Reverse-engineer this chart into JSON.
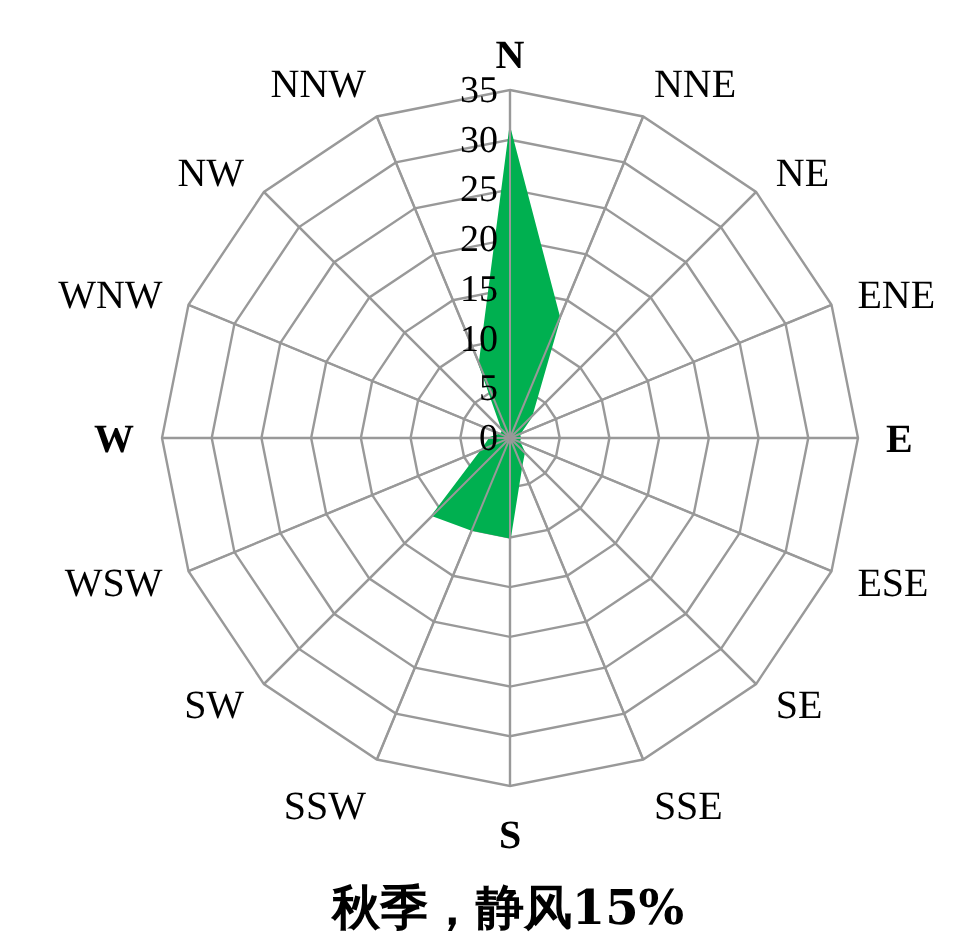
{
  "chart_data": {
    "type": "radar",
    "title": "秋季，静风15%",
    "categories": [
      "N",
      "NNE",
      "NE",
      "ENE",
      "E",
      "ESE",
      "SE",
      "SSE",
      "S",
      "SSW",
      "SW",
      "WSW",
      "W",
      "WNW",
      "NW",
      "NNW"
    ],
    "series": [
      {
        "color": "#00b050",
        "values": [
          31,
          13,
          3,
          1,
          1,
          1,
          2,
          3,
          10,
          10,
          11,
          3,
          2,
          1,
          1,
          8
        ]
      }
    ],
    "ylim": [
      0,
      35
    ],
    "yticks": [
      0,
      5,
      10,
      15,
      20,
      25,
      30,
      35
    ]
  }
}
